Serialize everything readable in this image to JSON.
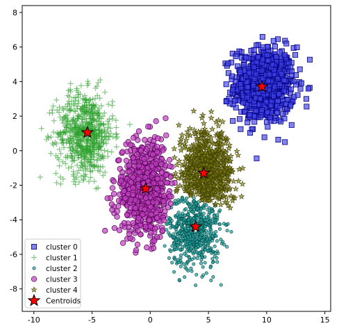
{
  "chart_data": {
    "type": "scatter",
    "title": "",
    "xlabel": "",
    "ylabel": "",
    "xlim": [
      -11,
      15.5
    ],
    "ylim": [
      -9.3,
      8.4
    ],
    "x_ticks": [
      -10,
      -5,
      0,
      5,
      10,
      15
    ],
    "y_ticks": [
      -8,
      -6,
      -4,
      -2,
      0,
      2,
      4,
      6,
      8
    ],
    "grid": false,
    "legend_position": "lower-left",
    "series": [
      {
        "name": "cluster 0",
        "marker": "square",
        "color": "#4040e8",
        "edge": "#000080",
        "center": [
          9.8,
          3.8
        ],
        "spread": [
          1.3,
          1.1
        ],
        "count": 700,
        "points_extent": {
          "x": [
            5.5,
            14
          ],
          "y": [
            -0.8,
            7.5
          ]
        }
      },
      {
        "name": "cluster 1",
        "marker": "plus",
        "color": "#2ca02c",
        "center": [
          -5.6,
          1.0
        ],
        "spread": [
          1.2,
          1.2
        ],
        "count": 700,
        "points_extent": {
          "x": [
            -10,
            -0.9
          ],
          "y": [
            -3.7,
            4.9
          ]
        }
      },
      {
        "name": "cluster 2",
        "marker": "circle-small",
        "color": "#1fa39b",
        "edge": "#004040",
        "center": [
          3.8,
          -4.6
        ],
        "spread": [
          1.1,
          1.1
        ],
        "count": 600,
        "points_extent": {
          "x": [
            1.0,
            7.6
          ],
          "y": [
            -8.5,
            -2.7
          ]
        }
      },
      {
        "name": "cluster 3",
        "marker": "circle",
        "color": "#c040c0",
        "edge": "#500050",
        "center": [
          -0.4,
          -2.2
        ],
        "spread": [
          1.3,
          1.4
        ],
        "count": 700,
        "points_extent": {
          "x": [
            -4.0,
            3.0
          ],
          "y": [
            -6.2,
            3.2
          ]
        }
      },
      {
        "name": "cluster 4",
        "marker": "star",
        "color": "#808010",
        "edge": "#404000",
        "center": [
          4.8,
          -1.3
        ],
        "spread": [
          1.2,
          1.2
        ],
        "count": 650,
        "points_extent": {
          "x": [
            1.8,
            9.2
          ],
          "y": [
            -3.7,
            3.1
          ]
        }
      }
    ],
    "centroids": {
      "name": "Centroids",
      "marker": "star",
      "color": "#ff0000",
      "edge": "#000000",
      "points": [
        {
          "x": 9.6,
          "y": 3.7
        },
        {
          "x": -5.4,
          "y": 1.05
        },
        {
          "x": 3.9,
          "y": -4.4
        },
        {
          "x": -0.4,
          "y": -2.2
        },
        {
          "x": 4.6,
          "y": -1.3
        }
      ]
    }
  }
}
